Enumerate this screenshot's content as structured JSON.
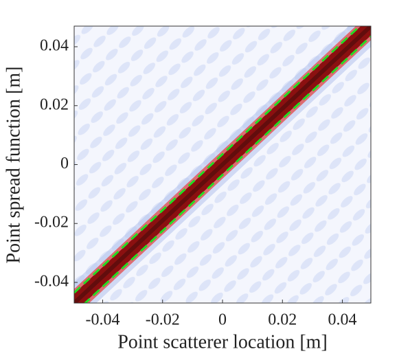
{
  "chart_data": {
    "type": "heatmap-lines",
    "xlabel": "Point scatterer location [m]",
    "ylabel": "Point spread function [m]",
    "x": [
      -0.0495,
      0.0495
    ],
    "series": [
      {
        "color": "#8b1010",
        "values": [
          -0.047,
          0.047
        ],
        "style": "band"
      },
      {
        "color": "#22dd22",
        "values": [
          -0.0435,
          0.0505
        ],
        "style": "dashed"
      },
      {
        "color": "#22dd22",
        "values": [
          -0.0505,
          0.0435
        ],
        "style": "dashed"
      }
    ],
    "xlim": [
      -0.0495,
      0.0495
    ],
    "ylim": [
      -0.047,
      0.047
    ],
    "xticks": [
      -0.04,
      -0.02,
      0,
      0.02,
      0.04
    ],
    "yticks": [
      -0.04,
      -0.02,
      0,
      0.02,
      0.04
    ]
  }
}
